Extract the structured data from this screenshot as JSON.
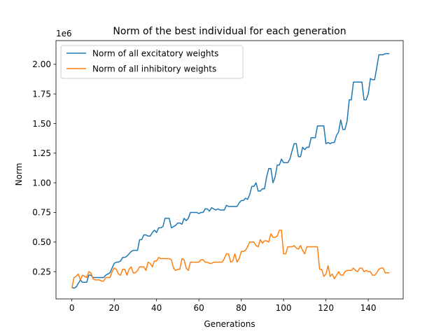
{
  "chart_data": {
    "type": "line",
    "title": "Norm of the best individual for each generation",
    "xlabel": "Generations",
    "ylabel": "Norm",
    "y_offset_label": "1e6",
    "xlim": [
      -7.5,
      156.5
    ],
    "ylim": [
      0.02,
      2.2
    ],
    "xticks": [
      0,
      20,
      40,
      60,
      80,
      100,
      120,
      140
    ],
    "yticks": [
      0.25,
      0.5,
      0.75,
      1.0,
      1.25,
      1.5,
      1.75,
      2.0
    ],
    "ytick_labels": [
      "0.25",
      "0.50",
      "0.75",
      "1.00",
      "1.25",
      "1.50",
      "1.75",
      "2.00"
    ],
    "grid": false,
    "legend_position": "top-left",
    "series": [
      {
        "name": "Norm of all excitatory weights",
        "color": "#1f77b4",
        "values": [
          0.12,
          0.11,
          0.12,
          0.15,
          0.18,
          0.16,
          0.16,
          0.16,
          0.22,
          0.22,
          0.2,
          0.2,
          0.2,
          0.2,
          0.2,
          0.2,
          0.22,
          0.23,
          0.24,
          0.28,
          0.32,
          0.33,
          0.33,
          0.34,
          0.37,
          0.37,
          0.38,
          0.4,
          0.42,
          0.43,
          0.43,
          0.43,
          0.52,
          0.52,
          0.56,
          0.56,
          0.55,
          0.55,
          0.58,
          0.6,
          0.58,
          0.62,
          0.62,
          0.63,
          0.7,
          0.7,
          0.7,
          0.62,
          0.63,
          0.64,
          0.66,
          0.66,
          0.65,
          0.7,
          0.68,
          0.7,
          0.75,
          0.75,
          0.75,
          0.75,
          0.74,
          0.75,
          0.75,
          0.78,
          0.78,
          0.76,
          0.79,
          0.78,
          0.77,
          0.78,
          0.77,
          0.77,
          0.77,
          0.81,
          0.8,
          0.8,
          0.8,
          0.8,
          0.8,
          0.83,
          0.85,
          0.85,
          0.87,
          0.86,
          0.9,
          0.97,
          0.97,
          1.0,
          0.93,
          0.93,
          0.95,
          0.95,
          1.05,
          1.12,
          1.12,
          1.0,
          1.05,
          1.15,
          1.15,
          1.2,
          1.17,
          1.17,
          1.17,
          1.2,
          1.27,
          1.33,
          1.33,
          1.22,
          1.22,
          1.3,
          1.28,
          1.3,
          1.3,
          1.38,
          1.38,
          1.38,
          1.48,
          1.48,
          1.48,
          1.48,
          1.33,
          1.34,
          1.33,
          1.34,
          1.34,
          1.4,
          1.43,
          1.53,
          1.45,
          1.45,
          1.52,
          1.7,
          1.7,
          1.85,
          1.85,
          1.85,
          1.85,
          1.85,
          1.7,
          1.7,
          1.75,
          1.88,
          1.87,
          1.87,
          1.97,
          2.08,
          2.08,
          2.08,
          2.09,
          2.09,
          2.09
        ]
      },
      {
        "name": "Norm of all inhibitory weights",
        "color": "#ff7f0e",
        "values": [
          0.11,
          0.2,
          0.21,
          0.23,
          0.18,
          0.22,
          0.21,
          0.2,
          0.25,
          0.24,
          0.19,
          0.18,
          0.18,
          0.18,
          0.17,
          0.17,
          0.2,
          0.2,
          0.2,
          0.25,
          0.28,
          0.27,
          0.23,
          0.22,
          0.27,
          0.27,
          0.22,
          0.27,
          0.29,
          0.24,
          0.24,
          0.26,
          0.29,
          0.29,
          0.29,
          0.26,
          0.33,
          0.32,
          0.29,
          0.34,
          0.34,
          0.37,
          0.36,
          0.36,
          0.36,
          0.36,
          0.36,
          0.35,
          0.28,
          0.26,
          0.27,
          0.27,
          0.36,
          0.35,
          0.28,
          0.26,
          0.33,
          0.33,
          0.33,
          0.33,
          0.33,
          0.35,
          0.35,
          0.33,
          0.33,
          0.32,
          0.32,
          0.33,
          0.33,
          0.33,
          0.33,
          0.33,
          0.36,
          0.4,
          0.4,
          0.33,
          0.34,
          0.4,
          0.33,
          0.36,
          0.42,
          0.42,
          0.43,
          0.46,
          0.5,
          0.5,
          0.5,
          0.47,
          0.46,
          0.52,
          0.49,
          0.51,
          0.51,
          0.5,
          0.57,
          0.54,
          0.54,
          0.55,
          0.6,
          0.6,
          0.4,
          0.4,
          0.46,
          0.46,
          0.46,
          0.47,
          0.45,
          0.44,
          0.47,
          0.43,
          0.4,
          0.46,
          0.46,
          0.46,
          0.46,
          0.46,
          0.46,
          0.27,
          0.27,
          0.21,
          0.23,
          0.3,
          0.21,
          0.23,
          0.19,
          0.22,
          0.25,
          0.22,
          0.22,
          0.25,
          0.26,
          0.26,
          0.26,
          0.28,
          0.26,
          0.25,
          0.28,
          0.28,
          0.25,
          0.26,
          0.25,
          0.25,
          0.22,
          0.22,
          0.24,
          0.27,
          0.28,
          0.28,
          0.24,
          0.24,
          0.24
        ]
      }
    ]
  }
}
